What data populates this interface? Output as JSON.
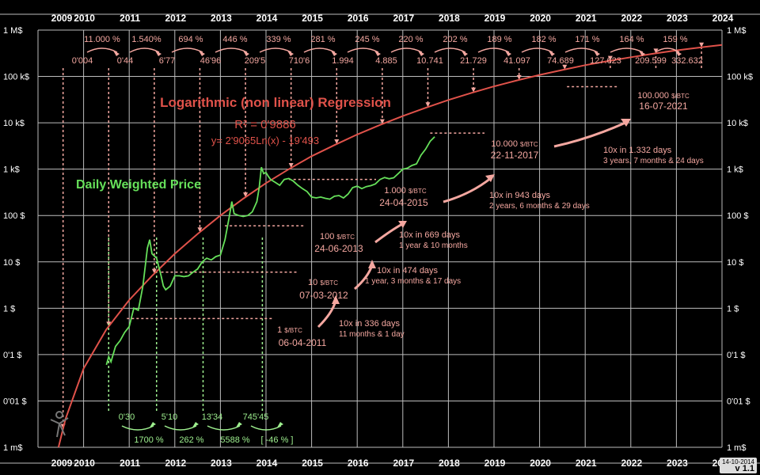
{
  "chart_data": {
    "type": "line",
    "y_scale": "log",
    "x_range": [
      2009,
      2024
    ],
    "y_range": [
      0.001,
      1000000
    ],
    "grid": true,
    "years": [
      "2009",
      "2010",
      "2011",
      "2012",
      "2013",
      "2014",
      "2015",
      "2016",
      "2017",
      "2018",
      "2019",
      "2020",
      "2021",
      "2022",
      "2023",
      "2024"
    ],
    "y_ticks": [
      "1 M$",
      "100 k$",
      "10 k$",
      "1 k$",
      "100 $",
      "10 $",
      "1 $",
      "0'1 $",
      "0'01 $",
      "1 m$"
    ],
    "regression": {
      "title": "Logarithmic (non linear) Regression",
      "r2_label": "R² = 0'9886",
      "formula": "y= 2'9065Ln(x) - 19'493",
      "color": "#e0524a",
      "points": [
        [
          2009.45,
          0.001
        ],
        [
          2009.6,
          0.004
        ],
        [
          2010,
          0.05
        ],
        [
          2010.5,
          0.35
        ],
        [
          2011,
          1.5
        ],
        [
          2011.5,
          5
        ],
        [
          2012,
          15
        ],
        [
          2012.5,
          40
        ],
        [
          2013,
          100
        ],
        [
          2013.5,
          230
        ],
        [
          2014,
          500
        ],
        [
          2014.5,
          1000
        ],
        [
          2015,
          1900
        ],
        [
          2015.5,
          3300
        ],
        [
          2016,
          5600
        ],
        [
          2016.5,
          9000
        ],
        [
          2017,
          14000
        ],
        [
          2017.5,
          21000
        ],
        [
          2018,
          31000
        ],
        [
          2018.5,
          44000
        ],
        [
          2019,
          61000
        ],
        [
          2019.5,
          82000
        ],
        [
          2020,
          108000
        ],
        [
          2020.5,
          138000
        ],
        [
          2021,
          175000
        ],
        [
          2021.5,
          215000
        ],
        [
          2022,
          260000
        ],
        [
          2022.5,
          310000
        ],
        [
          2023,
          365000
        ],
        [
          2023.5,
          420000
        ],
        [
          2024,
          480000
        ]
      ]
    },
    "price_series": {
      "name": "Daily Weighted Price",
      "color": "#66e05a",
      "points": [
        [
          2010.5,
          0.06
        ],
        [
          2010.55,
          0.09
        ],
        [
          2010.6,
          0.07
        ],
        [
          2010.7,
          0.15
        ],
        [
          2010.8,
          0.2
        ],
        [
          2010.9,
          0.3
        ],
        [
          2011.0,
          0.4
        ],
        [
          2011.1,
          1.0
        ],
        [
          2011.2,
          0.9
        ],
        [
          2011.3,
          3
        ],
        [
          2011.4,
          20
        ],
        [
          2011.45,
          30
        ],
        [
          2011.5,
          15
        ],
        [
          2011.6,
          12
        ],
        [
          2011.7,
          5
        ],
        [
          2011.75,
          3
        ],
        [
          2011.8,
          2.5
        ],
        [
          2011.9,
          3
        ],
        [
          2012.0,
          5
        ],
        [
          2012.1,
          5
        ],
        [
          2012.2,
          4.8
        ],
        [
          2012.3,
          5
        ],
        [
          2012.4,
          6
        ],
        [
          2012.5,
          7
        ],
        [
          2012.6,
          10
        ],
        [
          2012.7,
          12
        ],
        [
          2012.8,
          11
        ],
        [
          2012.9,
          13
        ],
        [
          2013.0,
          14
        ],
        [
          2013.1,
          30
        ],
        [
          2013.2,
          100
        ],
        [
          2013.25,
          200
        ],
        [
          2013.3,
          110
        ],
        [
          2013.4,
          100
        ],
        [
          2013.5,
          95
        ],
        [
          2013.6,
          100
        ],
        [
          2013.7,
          120
        ],
        [
          2013.8,
          200
        ],
        [
          2013.85,
          400
        ],
        [
          2013.9,
          1100
        ],
        [
          2013.95,
          800
        ],
        [
          2014.0,
          850
        ],
        [
          2014.05,
          700
        ],
        [
          2014.1,
          600
        ],
        [
          2014.2,
          520
        ],
        [
          2014.3,
          450
        ],
        [
          2014.4,
          600
        ],
        [
          2014.5,
          630
        ],
        [
          2014.6,
          550
        ],
        [
          2014.7,
          450
        ],
        [
          2014.8,
          380
        ],
        [
          2014.9,
          330
        ],
        [
          2015.0,
          250
        ],
        [
          2015.1,
          240
        ],
        [
          2015.2,
          250
        ],
        [
          2015.3,
          235
        ],
        [
          2015.4,
          225
        ],
        [
          2015.5,
          260
        ],
        [
          2015.6,
          270
        ],
        [
          2015.7,
          240
        ],
        [
          2015.8,
          290
        ],
        [
          2015.9,
          400
        ],
        [
          2016.0,
          430
        ],
        [
          2016.1,
          380
        ],
        [
          2016.2,
          420
        ],
        [
          2016.3,
          440
        ],
        [
          2016.4,
          480
        ],
        [
          2016.5,
          600
        ],
        [
          2016.6,
          660
        ],
        [
          2016.7,
          620
        ],
        [
          2016.8,
          650
        ],
        [
          2016.9,
          800
        ],
        [
          2017.0,
          1000
        ],
        [
          2017.1,
          1050
        ],
        [
          2017.2,
          1200
        ],
        [
          2017.3,
          1300
        ],
        [
          2017.4,
          2000
        ],
        [
          2017.5,
          2700
        ],
        [
          2017.6,
          4000
        ],
        [
          2017.7,
          5000
        ]
      ]
    },
    "growth_pct": [
      "11.000 %",
      "1.540%",
      "694 %",
      "446 %",
      "339 %",
      "281 %",
      "245 %",
      "220 %",
      "202 %",
      "189 %",
      "182 %",
      "171 %",
      "164 %",
      "159 %"
    ],
    "regression_values": [
      "0'004",
      "0'44",
      "6'77",
      "46'96",
      "209'5",
      "710'6",
      "1.994",
      "4.885",
      "10.741",
      "21.729",
      "41.097",
      "74.689",
      "127.623",
      "209.599",
      "332.632"
    ],
    "price_values": [
      "0'30",
      "5'10",
      "13'34",
      "745'45"
    ],
    "price_pct": [
      "1700 %",
      "262 %",
      "5588 %",
      "[ -46 % ]"
    ],
    "milestones": [
      {
        "price": "1",
        "unit": "$/BTC",
        "date": "06-04-2011"
      },
      {
        "price": "10",
        "unit": "$/BTC",
        "date": "07-03-2012"
      },
      {
        "price": "100",
        "unit": "$/BTC",
        "date": "24-06-2013"
      },
      {
        "price": "1.000",
        "unit": "$/BTC",
        "date": "24-04-2015"
      },
      {
        "price": "10.000",
        "unit": "$/BTC",
        "date": "22-11-2017"
      },
      {
        "price": "100.000",
        "unit": "$/BTC",
        "date": "16-07-2021"
      }
    ],
    "tenx": [
      {
        "days": "10x in 336 days",
        "detail": "11 months & 1 day"
      },
      {
        "days": "10x in 474 days",
        "detail": "1 year, 3 months & 17 days"
      },
      {
        "days": "10x in 669 days",
        "detail": "1 year & 10 months"
      },
      {
        "days": "10x in 943 days",
        "detail": "2 years, 6 months & 29 days"
      },
      {
        "days": "10x  in 1.332 days",
        "detail": "3 years, 7 months & 24 days"
      }
    ],
    "badge": {
      "date": "14-10-2014",
      "version": "v 1.1"
    }
  }
}
